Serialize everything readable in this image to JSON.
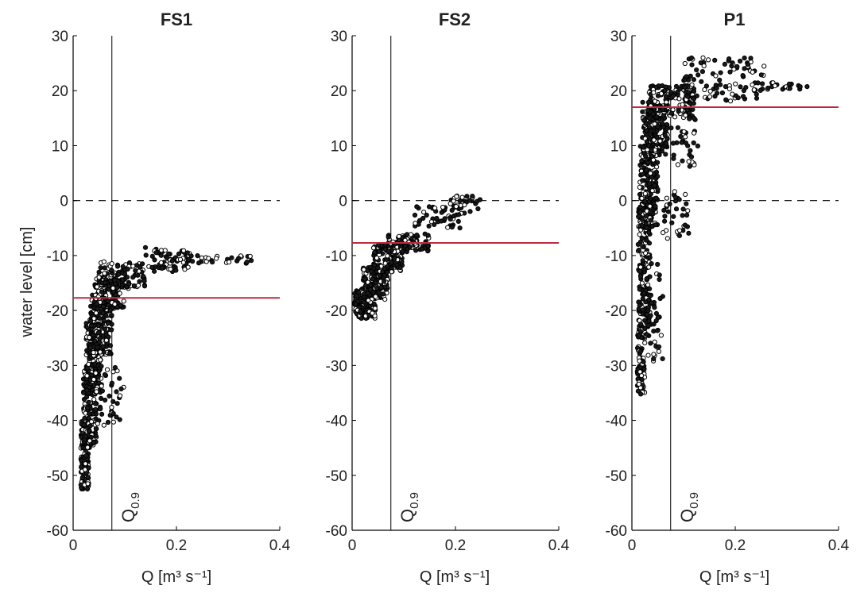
{
  "figure": {
    "ylabel": "water level [cm]"
  },
  "chart_data": [
    {
      "type": "scatter",
      "title": "FS1",
      "xlabel": "Q [m³ s⁻¹]",
      "ylabel": "water level [cm]",
      "xlim": [
        0,
        0.4
      ],
      "ylim": [
        -60,
        30
      ],
      "xticks": [
        "0",
        "0.2",
        "0.4"
      ],
      "yticks": [
        "-60",
        "-50",
        "-40",
        "-30",
        "-20",
        "-10",
        "0",
        "10",
        "20",
        "30"
      ],
      "reference_lines": [
        {
          "kind": "horizontal",
          "y": 0,
          "style": "dashed",
          "color": "#000000"
        },
        {
          "kind": "horizontal",
          "y": -17.7,
          "style": "solid",
          "color": "#c0283f"
        },
        {
          "kind": "vertical",
          "x": 0.075,
          "style": "solid",
          "color": "#000000",
          "label": "Q",
          "label_sub": "0.9"
        }
      ],
      "point_cloud": [
        {
          "x_min": 0.015,
          "x_max": 0.03,
          "y_min": -52.5,
          "y_max": -40,
          "count": 140
        },
        {
          "x_min": 0.02,
          "x_max": 0.045,
          "y_min": -45,
          "y_max": -30,
          "count": 160
        },
        {
          "x_min": 0.025,
          "x_max": 0.055,
          "y_min": -35,
          "y_max": -22,
          "count": 160
        },
        {
          "x_min": 0.03,
          "x_max": 0.075,
          "y_min": -28,
          "y_max": -17,
          "count": 150
        },
        {
          "x_min": 0.04,
          "x_max": 0.1,
          "y_min": -20,
          "y_max": -14,
          "count": 110
        },
        {
          "x_min": 0.05,
          "x_max": 0.14,
          "y_min": -16,
          "y_max": -11,
          "count": 110
        },
        {
          "x_min": 0.14,
          "x_max": 0.23,
          "y_min": -13,
          "y_max": -8.5,
          "count": 60
        },
        {
          "x_min": 0.22,
          "x_max": 0.345,
          "y_min": -11.5,
          "y_max": -10,
          "count": 30
        },
        {
          "x_min": 0.045,
          "x_max": 0.1,
          "y_min": -41,
          "y_max": -30,
          "count": 40
        }
      ]
    },
    {
      "type": "scatter",
      "title": "FS2",
      "xlabel": "Q [m³ s⁻¹]",
      "ylabel": "",
      "xlim": [
        0,
        0.4
      ],
      "ylim": [
        -60,
        30
      ],
      "xticks": [
        "0",
        "0.2",
        "0.4"
      ],
      "yticks": [
        "-60",
        "-50",
        "-40",
        "-30",
        "-20",
        "-10",
        "0",
        "10",
        "20",
        "30"
      ],
      "reference_lines": [
        {
          "kind": "horizontal",
          "y": 0,
          "style": "dashed",
          "color": "#000000"
        },
        {
          "kind": "horizontal",
          "y": -7.7,
          "style": "solid",
          "color": "#c0283f"
        },
        {
          "kind": "vertical",
          "x": 0.075,
          "style": "solid",
          "color": "#000000",
          "label": "Q",
          "label_sub": "0.9"
        }
      ],
      "point_cloud": [
        {
          "x_min": 0.005,
          "x_max": 0.045,
          "y_min": -21.5,
          "y_max": -16,
          "count": 160
        },
        {
          "x_min": 0.02,
          "x_max": 0.07,
          "y_min": -18,
          "y_max": -12,
          "count": 140
        },
        {
          "x_min": 0.04,
          "x_max": 0.1,
          "y_min": -13,
          "y_max": -8,
          "count": 120
        },
        {
          "x_min": 0.07,
          "x_max": 0.15,
          "y_min": -9.5,
          "y_max": -6,
          "count": 90
        },
        {
          "x_min": 0.12,
          "x_max": 0.22,
          "y_min": -5,
          "y_max": -1,
          "count": 50
        },
        {
          "x_min": 0.19,
          "x_max": 0.25,
          "y_min": -2,
          "y_max": 1,
          "count": 30
        }
      ]
    },
    {
      "type": "scatter",
      "title": "P1",
      "xlabel": "Q [m³ s⁻¹]",
      "ylabel": "",
      "xlim": [
        0,
        0.4
      ],
      "ylim": [
        -60,
        30
      ],
      "xticks": [
        "0",
        "0.2",
        "0.4"
      ],
      "yticks": [
        "-60",
        "-50",
        "-40",
        "-30",
        "-20",
        "-10",
        "0",
        "10",
        "20",
        "30"
      ],
      "reference_lines": [
        {
          "kind": "horizontal",
          "y": 0,
          "style": "dashed",
          "color": "#000000"
        },
        {
          "kind": "horizontal",
          "y": 17,
          "style": "solid",
          "color": "#c0283f"
        },
        {
          "kind": "vertical",
          "x": 0.075,
          "style": "solid",
          "color": "#000000",
          "label": "Q",
          "label_sub": "0.9"
        }
      ],
      "point_cloud": [
        {
          "x_min": 0.01,
          "x_max": 0.025,
          "y_min": -35.5,
          "y_max": -20,
          "count": 90
        },
        {
          "x_min": 0.012,
          "x_max": 0.035,
          "y_min": -25,
          "y_max": 0,
          "count": 160
        },
        {
          "x_min": 0.015,
          "x_max": 0.05,
          "y_min": -5,
          "y_max": 10,
          "count": 170
        },
        {
          "x_min": 0.02,
          "x_max": 0.07,
          "y_min": 8,
          "y_max": 18,
          "count": 170
        },
        {
          "x_min": 0.03,
          "x_max": 0.12,
          "y_min": 15,
          "y_max": 21,
          "count": 150
        },
        {
          "x_min": 0.1,
          "x_max": 0.26,
          "y_min": 18,
          "y_max": 26,
          "count": 90
        },
        {
          "x_min": 0.23,
          "x_max": 0.34,
          "y_min": 20,
          "y_max": 21.5,
          "count": 25
        },
        {
          "x_min": 0.06,
          "x_max": 0.11,
          "y_min": -7,
          "y_max": 2,
          "count": 35
        },
        {
          "x_min": 0.07,
          "x_max": 0.13,
          "y_min": 6,
          "y_max": 16,
          "count": 35
        },
        {
          "x_min": 0.03,
          "x_max": 0.06,
          "y_min": -30,
          "y_max": -10,
          "count": 40
        }
      ]
    }
  ]
}
